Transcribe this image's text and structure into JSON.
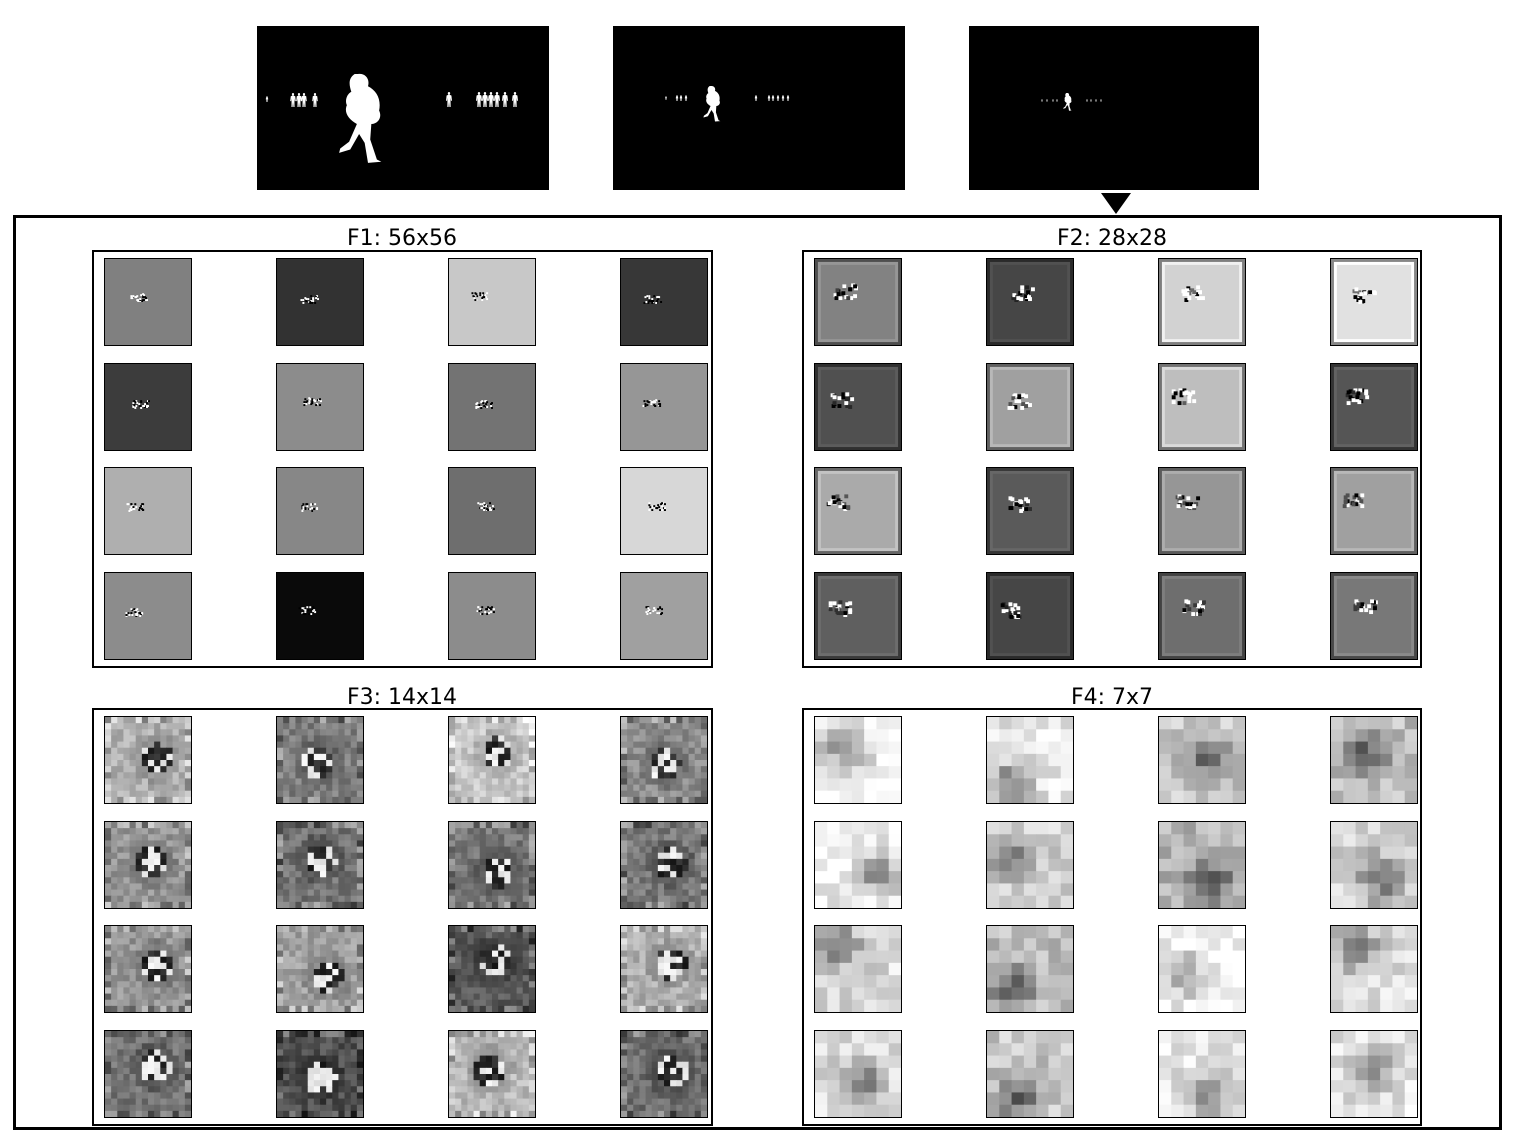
{
  "inputs": [
    {
      "name": "input-scale-1"
    },
    {
      "name": "input-scale-2"
    },
    {
      "name": "input-scale-3"
    }
  ],
  "panels": [
    {
      "key": "F1",
      "title": "F1: 56x56",
      "kind": "smooth",
      "bg": [
        128,
        50,
        200,
        55,
        60,
        140,
        115,
        150,
        175,
        135,
        110,
        215,
        140,
        10,
        140,
        160
      ]
    },
    {
      "key": "F2",
      "title": "F2: 28x28",
      "kind": "framed",
      "bg": [
        130,
        70,
        210,
        225,
        80,
        160,
        190,
        85,
        170,
        90,
        150,
        160,
        95,
        70,
        110,
        120
      ]
    },
    {
      "key": "F3",
      "title": "F3: 14x14",
      "kind": "noisy",
      "bg": [
        175,
        125,
        200,
        140,
        150,
        115,
        120,
        120,
        150,
        160,
        90,
        175,
        115,
        80,
        185,
        110
      ]
    },
    {
      "key": "F4",
      "title": "F4: 7x7",
      "kind": "blocky",
      "bg": [
        180,
        170,
        140,
        130,
        180,
        150,
        120,
        150,
        160,
        130,
        190,
        160,
        160,
        140,
        170,
        170
      ]
    }
  ]
}
